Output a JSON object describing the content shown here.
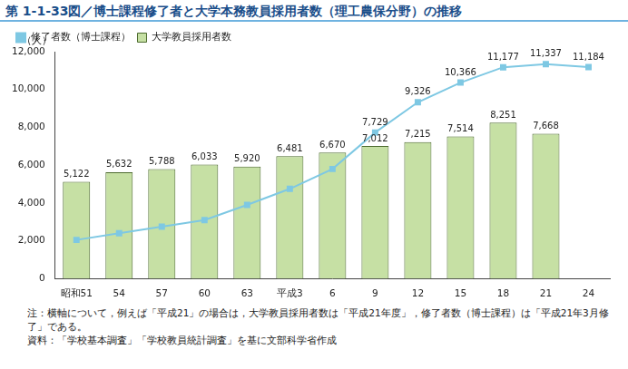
{
  "chart_data": {
    "type": "bar",
    "title": "第 1-1-33図／博士課程修了者と大学本務教員採用者数（理工農保分野）の推移",
    "y_label": "（人）",
    "categories": [
      "昭和51",
      "54",
      "57",
      "60",
      "63",
      "平成3",
      "6",
      "9",
      "12",
      "15",
      "18",
      "21",
      "24"
    ],
    "series": [
      {
        "name": "大学教員採用者数",
        "type": "bar",
        "color": "#c6e0a4",
        "values": [
          5122,
          5632,
          5788,
          6033,
          5920,
          6481,
          6670,
          7012,
          7215,
          7514,
          8251,
          7668,
          null
        ],
        "value_labels": [
          "5,122",
          "5,632",
          "5,788",
          "6,033",
          "5,920",
          "6,481",
          "6,670",
          "7,012",
          "7,215",
          "7,514",
          "8,251",
          "7,668",
          null
        ]
      },
      {
        "name": "修了者数（博士課程）",
        "type": "line",
        "color": "#7ec8e3",
        "marker": "square",
        "line_style": "solid",
        "values": [
          2050,
          2400,
          2750,
          3100,
          3900,
          4750,
          5800,
          7729,
          9326,
          10366,
          11177,
          11337,
          11184
        ],
        "value_labels": [
          null,
          null,
          null,
          null,
          null,
          null,
          null,
          "7,729",
          "9,326",
          "10,366",
          "11,177",
          "11,337",
          "11,184"
        ]
      }
    ],
    "ylim": [
      0,
      12000
    ],
    "yticks": [
      0,
      {
        "value": 2000,
        "label": "2,000"
      },
      {
        "value": 4000,
        "label": "4,000"
      },
      {
        "value": 6000,
        "label": "6,000"
      },
      {
        "value": 8000,
        "label": "8,000"
      },
      {
        "value": 10000,
        "label": "10,000"
      },
      {
        "value": 12000,
        "label": "12,000"
      }
    ],
    "grid": false,
    "legend": "upper left",
    "data_labels": true,
    "notes": [
      "注：横軸について，例えば「平成21」の場合は，大学教員採用者数は「平成21年度」，修了者数（博士課程）は「平成21年3月修了」である。",
      "資料：「学校基本調査」「学校教員統計調査」を基に文部科学省作成"
    ]
  }
}
